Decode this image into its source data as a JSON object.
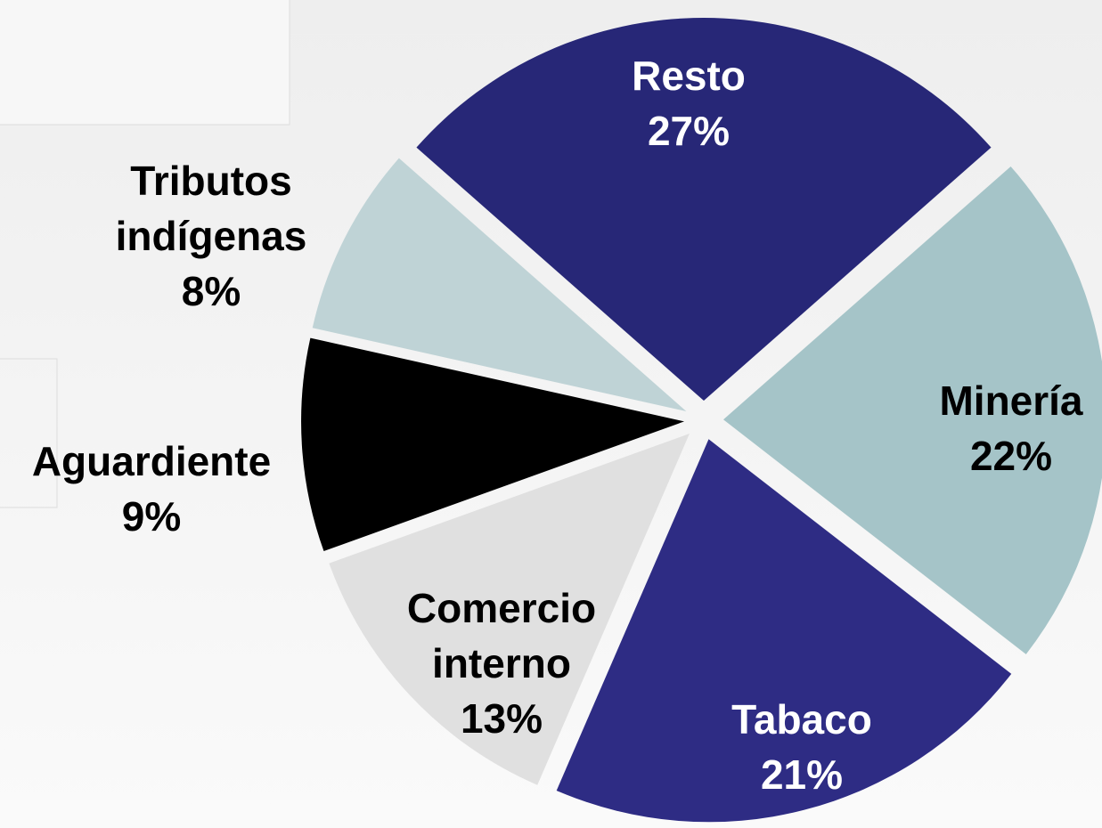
{
  "chart_data": {
    "type": "pie",
    "categories": [
      "Resto",
      "Minería",
      "Tabaco",
      "Comercio interno",
      "Aguardiente",
      "Tributos indígenas"
    ],
    "values": [
      27,
      22,
      21,
      13,
      9,
      8
    ],
    "value_labels": [
      "27%",
      "22%",
      "21%",
      "13%",
      "9%",
      "8%"
    ],
    "colors": [
      "#272777",
      "#a5c4c8",
      "#2e2c84",
      "#e0e0e0",
      "#000000",
      "#bfd3d6"
    ]
  }
}
